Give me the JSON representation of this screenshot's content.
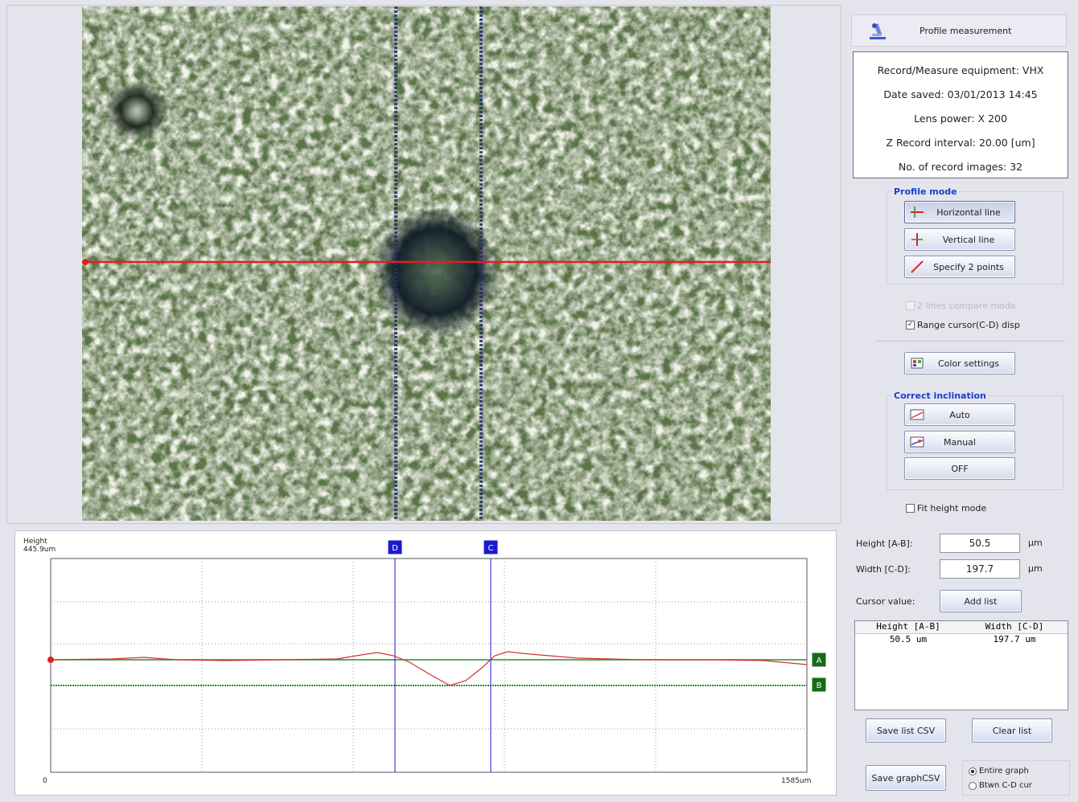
{
  "panel": {
    "title": "Profile measurement",
    "info": [
      {
        "label": "Record/Measure equipment:",
        "value": "VHX"
      },
      {
        "label": "Date saved:",
        "value": "03/01/2013 14:45"
      },
      {
        "label": "Lens power:",
        "value": "X 200"
      },
      {
        "label": "Z Record interval:",
        "value": "20.00 [um]"
      },
      {
        "label": "No. of record images:",
        "value": "32"
      }
    ]
  },
  "profile_mode": {
    "title": "Profile mode",
    "horizontal": "Horizontal line",
    "vertical": "Vertical line",
    "two_points": "Specify 2 points",
    "selected": "Horizontal line"
  },
  "options": {
    "two_lines_compare": "2 lines compare mode",
    "two_lines_compare_enabled": false,
    "range_cursor": "Range cursor(C-D) disp",
    "range_cursor_checked": true,
    "fit_height": "Fit height mode",
    "fit_height_checked": false
  },
  "color_settings": "Color settings",
  "correct_inclination": {
    "title": "Correct inclination",
    "auto": "Auto",
    "manual": "Manual",
    "off": "OFF"
  },
  "measurement": {
    "height_label": "Height [A-B]:",
    "height_value": "50.5",
    "height_unit": "µm",
    "width_label": "Width [C-D]:",
    "width_value": "197.7",
    "width_unit": "µm",
    "cursor_label": "Cursor value:",
    "add_list": "Add list",
    "list_headers": [
      "Height [A-B]",
      "Width [C-D]"
    ],
    "list_rows": [
      [
        "50.5 um",
        "197.7 um"
      ]
    ],
    "save_list_csv": "Save list CSV",
    "clear_list": "Clear list",
    "save_graph_csv": "Save graphCSV",
    "radio_entire": "Entire graph",
    "radio_between": "Btwn C-D cur",
    "radio_selected": "Entire graph"
  },
  "graph": {
    "y_label": "Height",
    "y_max": "445.9um",
    "x_min": "0",
    "x_max": "1585um",
    "cursor_d": "D",
    "cursor_c": "C",
    "cursor_a": "A",
    "cursor_b": "B",
    "colors": {
      "profile": "#d43030",
      "cursor_ab": "#2e8b2e",
      "cursor_cd": "#1b1bd0"
    }
  }
}
